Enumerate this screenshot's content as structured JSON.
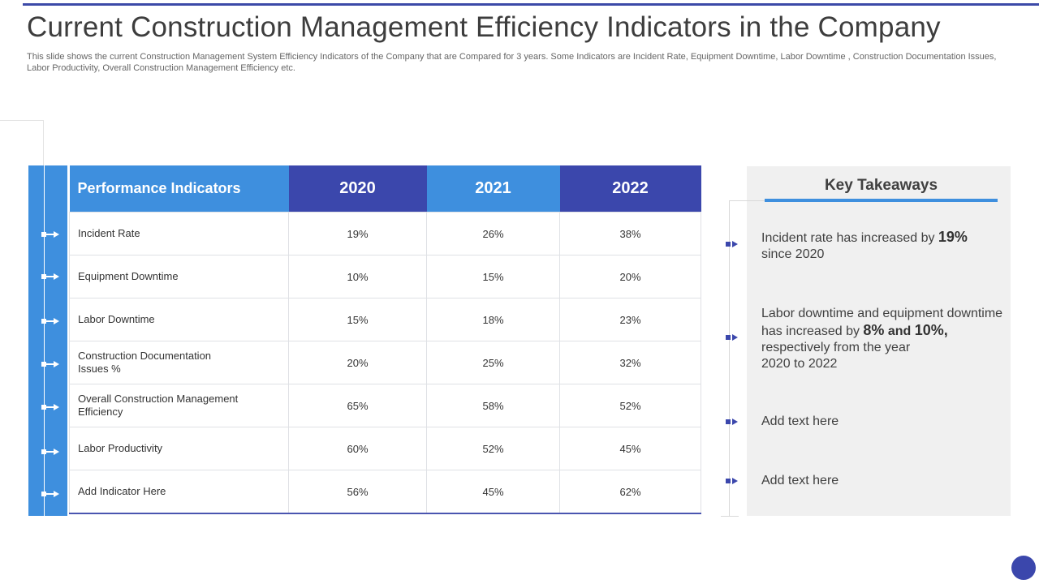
{
  "title": "Current Construction Management Efficiency Indicators in the Company",
  "subtitle": "This slide shows the current Construction Management System Efficiency Indicators of the Company that are Compared for 3 years. Some Indicators are Incident Rate, Equipment Downtime, Labor Downtime , Construction Documentation Issues, Labor Productivity, Overall Construction Management Efficiency etc.",
  "table": {
    "headers": [
      "Performance Indicators",
      "2020",
      "2021",
      "2022"
    ],
    "rows": [
      {
        "label": "Incident Rate",
        "values": [
          "19%",
          "26%",
          "38%"
        ]
      },
      {
        "label": "Equipment Downtime",
        "values": [
          "10%",
          "15%",
          "20%"
        ]
      },
      {
        "label": "Labor Downtime",
        "values": [
          "15%",
          "18%",
          "23%"
        ]
      },
      {
        "label": "Construction Documentation Issues %",
        "values": [
          "20%",
          "25%",
          "32%"
        ]
      },
      {
        "label": "Overall Construction Management Efficiency",
        "values": [
          "65%",
          "58%",
          "52%"
        ]
      },
      {
        "label": "Labor Productivity",
        "values": [
          "60%",
          "52%",
          "45%"
        ]
      },
      {
        "label": "Add Indicator Here",
        "values": [
          "56%",
          "45%",
          "62%"
        ]
      }
    ]
  },
  "takeaways": {
    "title": "Key Takeaways",
    "items": [
      {
        "pre": "Incident rate has increased by ",
        "bold": "19%",
        "post": "since 2020"
      },
      {
        "pre": "Labor downtime and equipment downtime has increased by ",
        "bold1": "8%",
        "mid": " and ",
        "bold2": "10%,",
        "post": "respectively from the year 2020 to 2022"
      },
      {
        "text": "Add text here"
      },
      {
        "text": "Add text here"
      }
    ]
  },
  "colors": {
    "dark_blue": "#3b47ac",
    "light_blue": "#3e8fde",
    "panel_gray": "#f0f0f0"
  }
}
